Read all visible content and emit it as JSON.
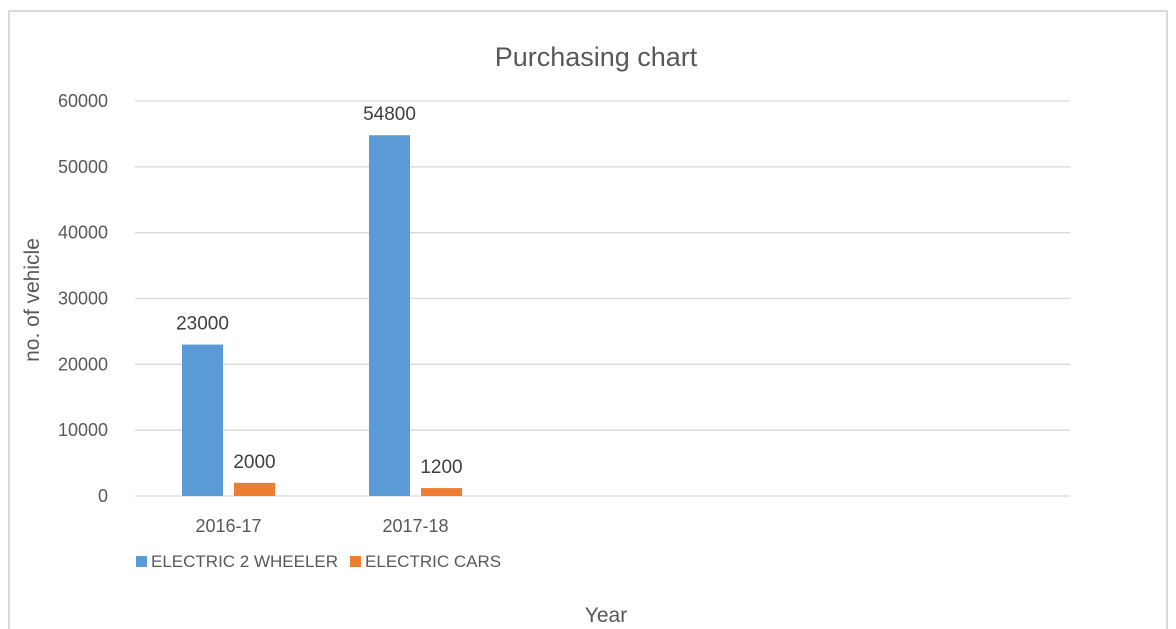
{
  "chart_data": {
    "type": "bar",
    "title": "Purchasing chart",
    "xlabel": "Year",
    "ylabel": "no. of vehicle",
    "categories": [
      "2016-17",
      "2017-18",
      "",
      "",
      ""
    ],
    "series": [
      {
        "name": "ELECTRIC 2 WHEELER",
        "color": "#5b9bd5",
        "values": [
          23000,
          54800,
          null,
          null,
          null
        ]
      },
      {
        "name": "ELECTRIC CARS",
        "color": "#ed7d31",
        "values": [
          2000,
          1200,
          null,
          null,
          null
        ]
      }
    ],
    "ylim": [
      0,
      60000
    ],
    "yticks": [
      0,
      10000,
      20000,
      30000,
      40000,
      50000,
      60000
    ],
    "grid": true,
    "legend": "bottom-left",
    "data_labels": true
  }
}
